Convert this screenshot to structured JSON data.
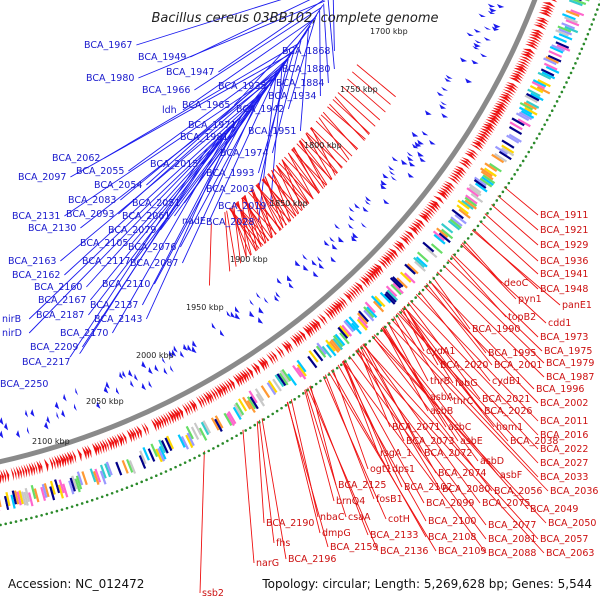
{
  "title": "Bacillus cereus 03BB102, complete genome",
  "footer": {
    "accession": "Accession: NC_012472",
    "summary": "Topology: circular; Length: 5,269,628 bp; Genes: 5,544"
  },
  "colors": {
    "forward_gene": "#1a1aee",
    "reverse_gene": "#ee1111",
    "backbone": "#8a8a8a",
    "tick_marks": "#2a8a2a",
    "blue_label": "#1a1acc",
    "red_label": "#cc1111"
  },
  "scale_ticks": [
    "1700 kbp",
    "1750 kbp",
    "1800 kbp",
    "1850 kbp",
    "1900 kbp",
    "1950 kbp",
    "2000 kbp",
    "2050 kbp",
    "2100 kbp"
  ],
  "forward_labels": [
    "BCA_1967",
    "BCA_1949",
    "BCA_1947",
    "BCA_1980",
    "BCA_1966",
    "BCA_1935",
    "ldh",
    "BCA_1965",
    "BCA_1942",
    "BCA_1971",
    "BCA_1981",
    "BCA_1974",
    "BCA_1951",
    "BCA_1934",
    "BCA_1884",
    "BCA_1880",
    "BCA_1868",
    "BCA_2062",
    "BCA_2055",
    "BCA_2097",
    "BCA_2054",
    "BCA_2015",
    "BCA_1993",
    "BCA_2003",
    "BCA_2083",
    "BCA_2051",
    "BCA_2019",
    "BCA_2131",
    "BCA_2093",
    "BCA_2061",
    "nadE",
    "BCA_2028",
    "BCA_2130",
    "BCA_2079",
    "BCA_2105",
    "BCA_2076",
    "BCA_2163",
    "BCA_2117",
    "BCA_2087",
    "BCA_2162",
    "BCA_2110",
    "BCA_2160",
    "BCA_2167",
    "BCA_2137",
    "nirB",
    "BCA_2187",
    "BCA_2143",
    "nirD",
    "BCA_2170",
    "BCA_2209",
    "BCA_2217",
    "BCA_2250"
  ],
  "reverse_labels": [
    "BCA_1911",
    "BCA_1921",
    "BCA_1929",
    "BCA_1936",
    "BCA_1941",
    "deoC",
    "BCA_1948",
    "pyn1",
    "panE1",
    "topB2",
    "cdd1",
    "BCA_1990",
    "BCA_1973",
    "cydA1",
    "BCA_1995",
    "BCA_1975",
    "BCA_2020",
    "BCA_2001",
    "BCA_1979",
    "thrB",
    "fabG",
    "cydB1",
    "BCA_1987",
    "asbA",
    "thrC",
    "BCA_2021",
    "BCA_1996",
    "asbB",
    "BCA_2026",
    "BCA_2002",
    "hom1",
    "BCA_2011",
    "BCA_2071",
    "asbC",
    "BCA_2016",
    "BCA_2073",
    "asbE",
    "BCA_2038",
    "rsgA_1",
    "BCA_2072",
    "BCA_2022",
    "asbD",
    "BCA_2027",
    "ogt1",
    "dps1",
    "BCA_2074",
    "asbF",
    "BCA_2033",
    "BCA_2125",
    "BCA_2102",
    "BCA_2080",
    "BCA_2056",
    "BCA_2036",
    "brnQ4",
    "fosB1",
    "BCA_2099",
    "BCA_2075",
    "BCA_2049",
    "nbaC",
    "csaA",
    "cotH",
    "BCA_2100",
    "BCA_2077",
    "BCA_2050",
    "BCA_2190",
    "dmpG",
    "BCA_2133",
    "BCA_2108",
    "BCA_2081",
    "BCA_2057",
    "fhs",
    "BCA_2159",
    "BCA_2136",
    "BCA_2109",
    "BCA_2088",
    "BCA_2063",
    "narG",
    "BCA_2196",
    "ssb2"
  ]
}
